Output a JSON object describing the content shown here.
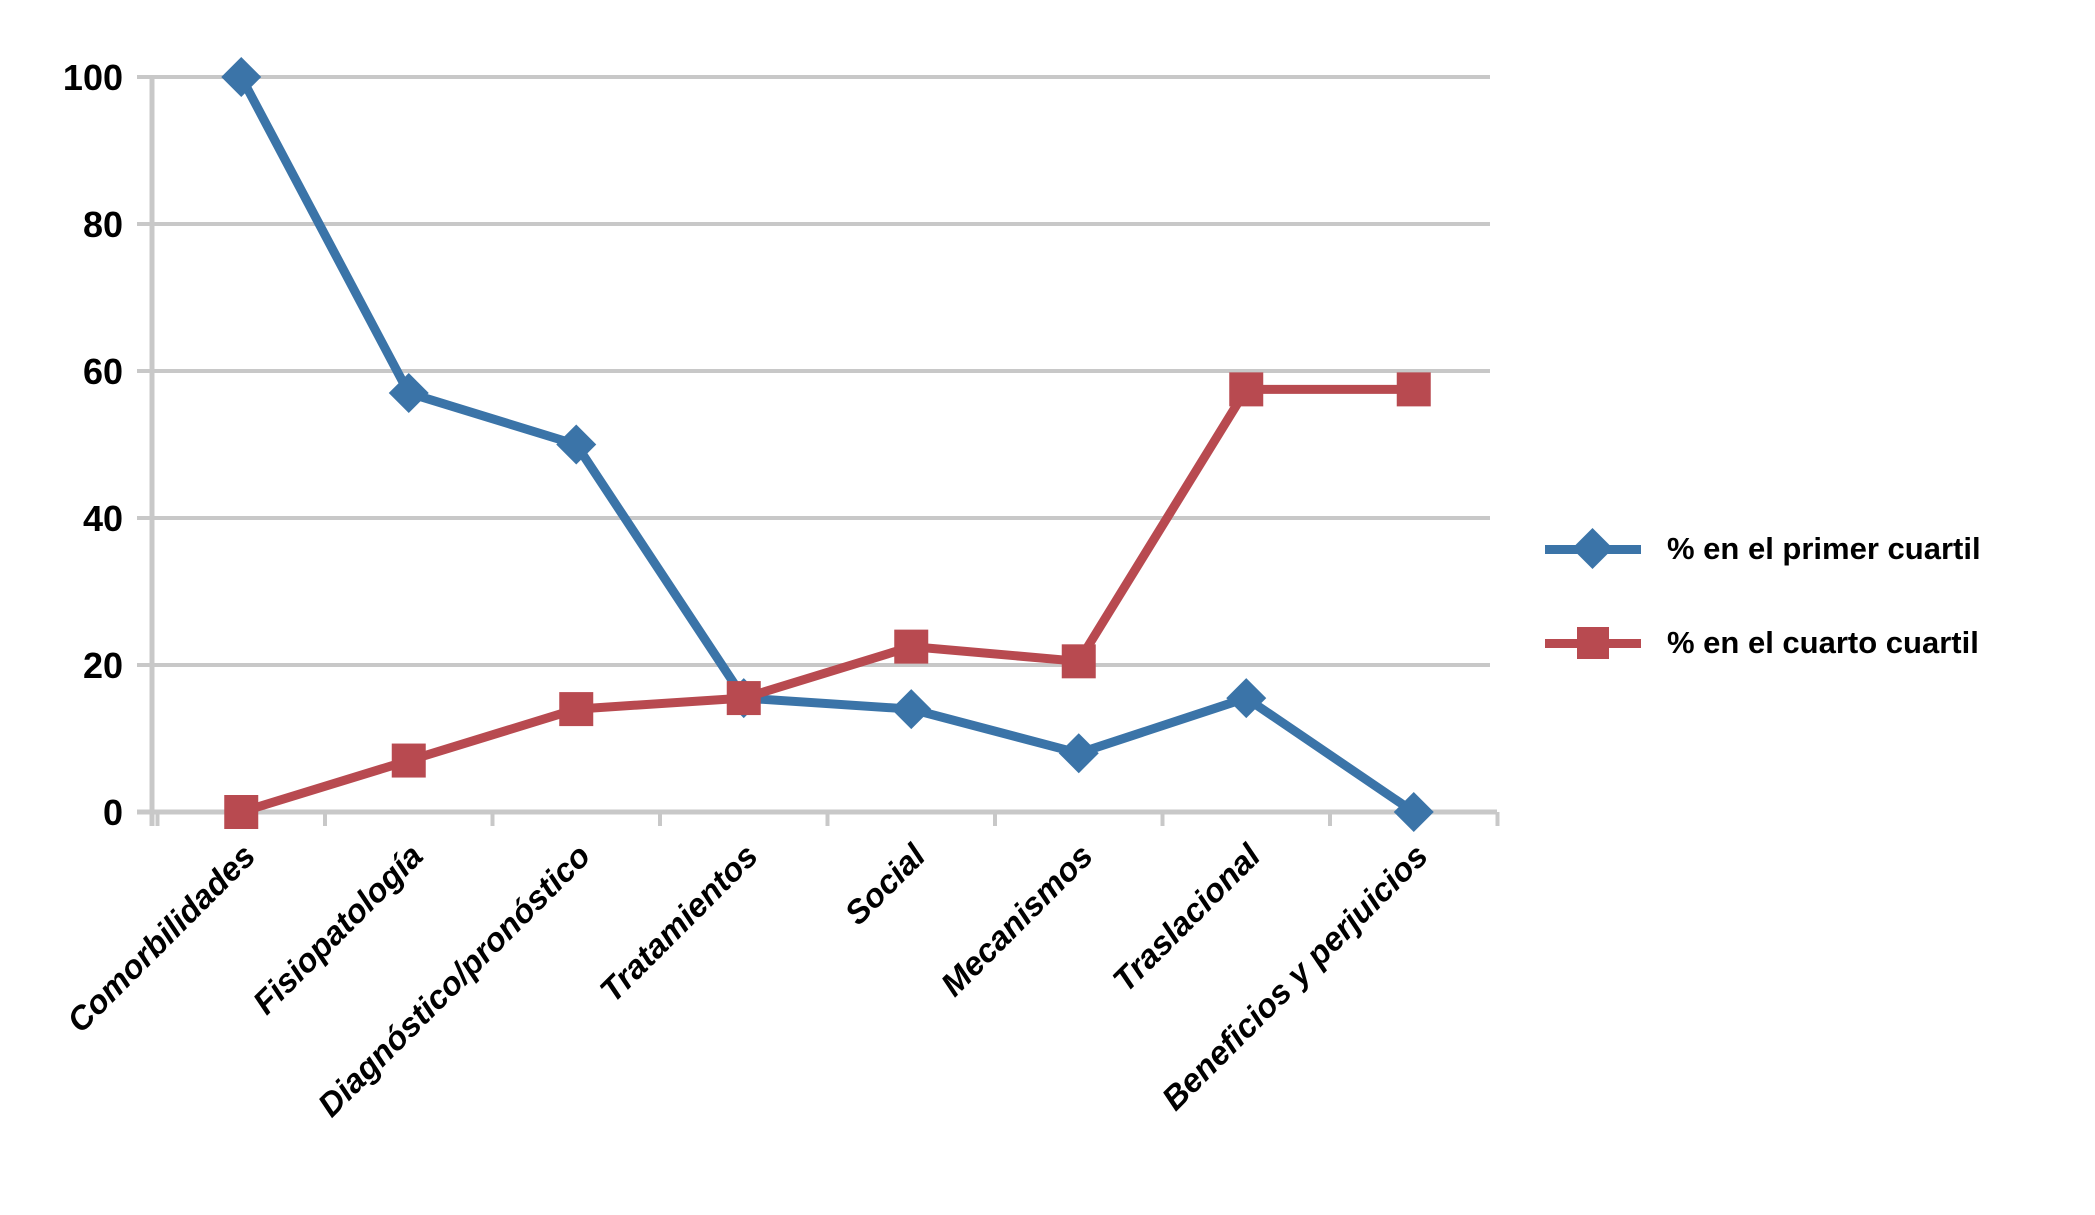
{
  "chart_data": {
    "type": "line",
    "title": "",
    "xlabel": "",
    "ylabel": "",
    "categories": [
      "Comorbilidades",
      "Fisiopatología",
      "Diagnóstico/pronóstico",
      "Tratamientos",
      "Social",
      "Mecanismos",
      "Traslacional",
      "Beneficios y perjuicios"
    ],
    "series": [
      {
        "name": "% en el primer cuartil",
        "marker": "diamond",
        "color": "#3B74A8",
        "values": [
          100,
          57,
          50,
          15.5,
          14,
          8,
          15.5,
          0
        ]
      },
      {
        "name": "% en el cuarto cuartil",
        "marker": "square",
        "color": "#B84A50",
        "values": [
          0,
          7,
          14,
          15.5,
          22.5,
          20.5,
          57.5,
          57.5
        ]
      }
    ],
    "ylim": [
      0,
      100
    ],
    "yticks": [
      0,
      20,
      40,
      60,
      80,
      100
    ],
    "grid": "horizontal",
    "legend_position": "right-middle"
  },
  "colors": {
    "background": "#FFFFFF",
    "gridline": "#C8C8C8",
    "axis_line": "#C8C8C8",
    "label_text": "#000000"
  }
}
